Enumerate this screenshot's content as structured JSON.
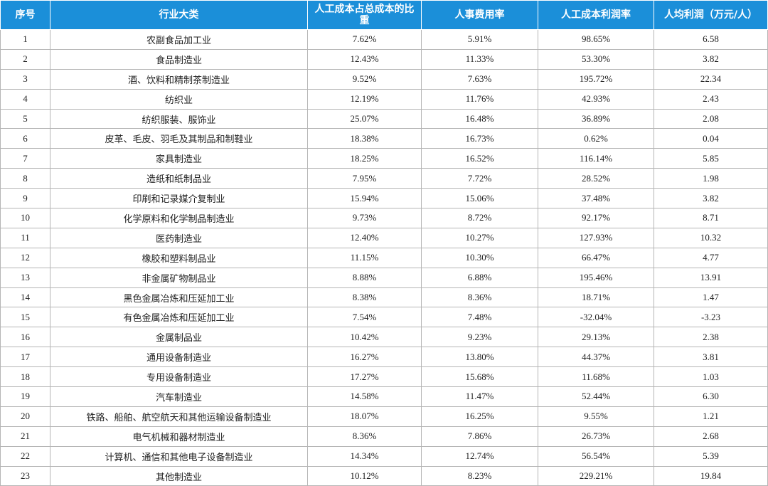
{
  "table": {
    "header": [
      "序号",
      "行业大类",
      "人工成本占总成本的比重",
      "人事费用率",
      "人工成本利润率",
      "人均利润（万元/人）"
    ],
    "rows": [
      [
        "1",
        "农副食品加工业",
        "7.62%",
        "5.91%",
        "98.65%",
        "6.58"
      ],
      [
        "2",
        "食品制造业",
        "12.43%",
        "11.33%",
        "53.30%",
        "3.82"
      ],
      [
        "3",
        "酒、饮料和精制茶制造业",
        "9.52%",
        "7.63%",
        "195.72%",
        "22.34"
      ],
      [
        "4",
        "纺织业",
        "12.19%",
        "11.76%",
        "42.93%",
        "2.43"
      ],
      [
        "5",
        "纺织服装、服饰业",
        "25.07%",
        "16.48%",
        "36.89%",
        "2.08"
      ],
      [
        "6",
        "皮革、毛皮、羽毛及其制品和制鞋业",
        "18.38%",
        "16.73%",
        "0.62%",
        "0.04"
      ],
      [
        "7",
        "家具制造业",
        "18.25%",
        "16.52%",
        "116.14%",
        "5.85"
      ],
      [
        "8",
        "造纸和纸制品业",
        "7.95%",
        "7.72%",
        "28.52%",
        "1.98"
      ],
      [
        "9",
        "印刷和记录媒介复制业",
        "15.94%",
        "15.06%",
        "37.48%",
        "3.82"
      ],
      [
        "10",
        "化学原料和化学制品制造业",
        "9.73%",
        "8.72%",
        "92.17%",
        "8.71"
      ],
      [
        "11",
        "医药制造业",
        "12.40%",
        "10.27%",
        "127.93%",
        "10.32"
      ],
      [
        "12",
        "橡胶和塑料制品业",
        "11.15%",
        "10.30%",
        "66.47%",
        "4.77"
      ],
      [
        "13",
        "非金属矿物制品业",
        "8.88%",
        "6.88%",
        "195.46%",
        "13.91"
      ],
      [
        "14",
        "黑色金属冶炼和压延加工业",
        "8.38%",
        "8.36%",
        "18.71%",
        "1.47"
      ],
      [
        "15",
        "有色金属冶炼和压延加工业",
        "7.54%",
        "7.48%",
        "-32.04%",
        "-3.23"
      ],
      [
        "16",
        "金属制品业",
        "10.42%",
        "9.23%",
        "29.13%",
        "2.38"
      ],
      [
        "17",
        "通用设备制造业",
        "16.27%",
        "13.80%",
        "44.37%",
        "3.81"
      ],
      [
        "18",
        "专用设备制造业",
        "17.27%",
        "15.68%",
        "11.68%",
        "1.03"
      ],
      [
        "19",
        "汽车制造业",
        "14.58%",
        "11.47%",
        "52.44%",
        "6.30"
      ],
      [
        "20",
        "铁路、船舶、航空航天和其他运输设备制造业",
        "18.07%",
        "16.25%",
        "9.55%",
        "1.21"
      ],
      [
        "21",
        "电气机械和器材制造业",
        "8.36%",
        "7.86%",
        "26.73%",
        "2.68"
      ],
      [
        "22",
        "计算机、通信和其他电子设备制造业",
        "14.34%",
        "12.74%",
        "56.54%",
        "5.39"
      ],
      [
        "23",
        "其他制造业",
        "10.12%",
        "8.23%",
        "229.21%",
        "19.84"
      ]
    ]
  }
}
